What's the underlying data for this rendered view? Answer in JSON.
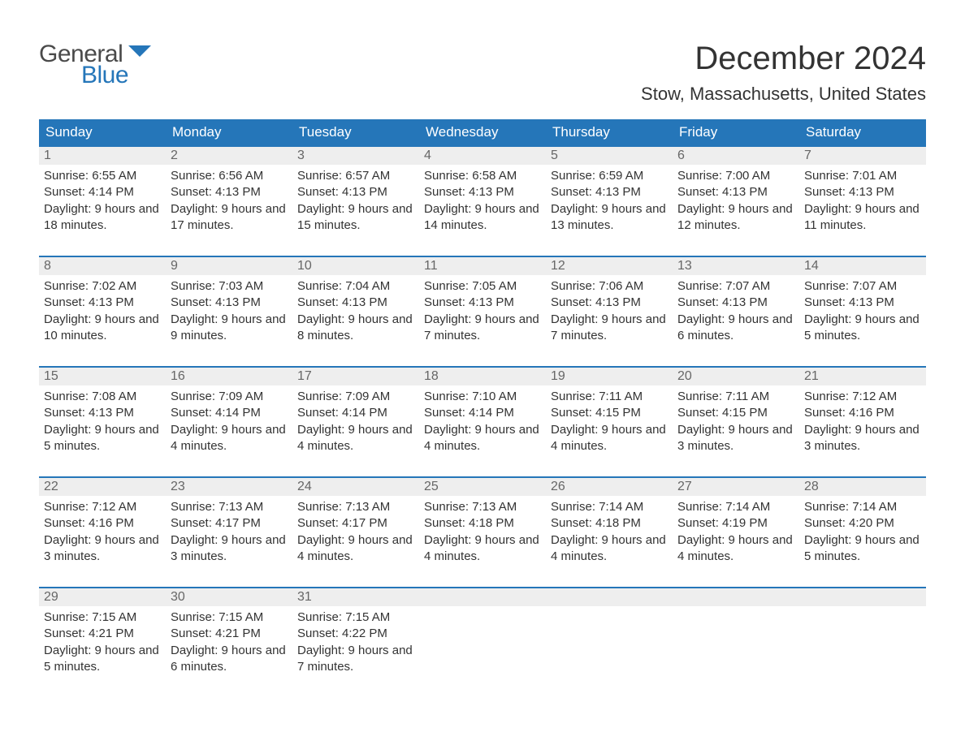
{
  "logo": {
    "top": "General",
    "bottom": "Blue"
  },
  "title": "December 2024",
  "location": "Stow, Massachusetts, United States",
  "colors": {
    "header_bg": "#2576b9",
    "header_text": "#ffffff",
    "daynum_bg": "#eeeeee",
    "daynum_text": "#666666",
    "week_border": "#2576b9",
    "body_text": "#333333",
    "logo_gray": "#4a4a4a",
    "logo_blue": "#2576b9",
    "page_bg": "#ffffff"
  },
  "dayheaders": [
    "Sunday",
    "Monday",
    "Tuesday",
    "Wednesday",
    "Thursday",
    "Friday",
    "Saturday"
  ],
  "weeks": [
    [
      {
        "num": "1",
        "sunrise": "Sunrise: 6:55 AM",
        "sunset": "Sunset: 4:14 PM",
        "daylight": "Daylight: 9 hours and 18 minutes."
      },
      {
        "num": "2",
        "sunrise": "Sunrise: 6:56 AM",
        "sunset": "Sunset: 4:13 PM",
        "daylight": "Daylight: 9 hours and 17 minutes."
      },
      {
        "num": "3",
        "sunrise": "Sunrise: 6:57 AM",
        "sunset": "Sunset: 4:13 PM",
        "daylight": "Daylight: 9 hours and 15 minutes."
      },
      {
        "num": "4",
        "sunrise": "Sunrise: 6:58 AM",
        "sunset": "Sunset: 4:13 PM",
        "daylight": "Daylight: 9 hours and 14 minutes."
      },
      {
        "num": "5",
        "sunrise": "Sunrise: 6:59 AM",
        "sunset": "Sunset: 4:13 PM",
        "daylight": "Daylight: 9 hours and 13 minutes."
      },
      {
        "num": "6",
        "sunrise": "Sunrise: 7:00 AM",
        "sunset": "Sunset: 4:13 PM",
        "daylight": "Daylight: 9 hours and 12 minutes."
      },
      {
        "num": "7",
        "sunrise": "Sunrise: 7:01 AM",
        "sunset": "Sunset: 4:13 PM",
        "daylight": "Daylight: 9 hours and 11 minutes."
      }
    ],
    [
      {
        "num": "8",
        "sunrise": "Sunrise: 7:02 AM",
        "sunset": "Sunset: 4:13 PM",
        "daylight": "Daylight: 9 hours and 10 minutes."
      },
      {
        "num": "9",
        "sunrise": "Sunrise: 7:03 AM",
        "sunset": "Sunset: 4:13 PM",
        "daylight": "Daylight: 9 hours and 9 minutes."
      },
      {
        "num": "10",
        "sunrise": "Sunrise: 7:04 AM",
        "sunset": "Sunset: 4:13 PM",
        "daylight": "Daylight: 9 hours and 8 minutes."
      },
      {
        "num": "11",
        "sunrise": "Sunrise: 7:05 AM",
        "sunset": "Sunset: 4:13 PM",
        "daylight": "Daylight: 9 hours and 7 minutes."
      },
      {
        "num": "12",
        "sunrise": "Sunrise: 7:06 AM",
        "sunset": "Sunset: 4:13 PM",
        "daylight": "Daylight: 9 hours and 7 minutes."
      },
      {
        "num": "13",
        "sunrise": "Sunrise: 7:07 AM",
        "sunset": "Sunset: 4:13 PM",
        "daylight": "Daylight: 9 hours and 6 minutes."
      },
      {
        "num": "14",
        "sunrise": "Sunrise: 7:07 AM",
        "sunset": "Sunset: 4:13 PM",
        "daylight": "Daylight: 9 hours and 5 minutes."
      }
    ],
    [
      {
        "num": "15",
        "sunrise": "Sunrise: 7:08 AM",
        "sunset": "Sunset: 4:13 PM",
        "daylight": "Daylight: 9 hours and 5 minutes."
      },
      {
        "num": "16",
        "sunrise": "Sunrise: 7:09 AM",
        "sunset": "Sunset: 4:14 PM",
        "daylight": "Daylight: 9 hours and 4 minutes."
      },
      {
        "num": "17",
        "sunrise": "Sunrise: 7:09 AM",
        "sunset": "Sunset: 4:14 PM",
        "daylight": "Daylight: 9 hours and 4 minutes."
      },
      {
        "num": "18",
        "sunrise": "Sunrise: 7:10 AM",
        "sunset": "Sunset: 4:14 PM",
        "daylight": "Daylight: 9 hours and 4 minutes."
      },
      {
        "num": "19",
        "sunrise": "Sunrise: 7:11 AM",
        "sunset": "Sunset: 4:15 PM",
        "daylight": "Daylight: 9 hours and 4 minutes."
      },
      {
        "num": "20",
        "sunrise": "Sunrise: 7:11 AM",
        "sunset": "Sunset: 4:15 PM",
        "daylight": "Daylight: 9 hours and 3 minutes."
      },
      {
        "num": "21",
        "sunrise": "Sunrise: 7:12 AM",
        "sunset": "Sunset: 4:16 PM",
        "daylight": "Daylight: 9 hours and 3 minutes."
      }
    ],
    [
      {
        "num": "22",
        "sunrise": "Sunrise: 7:12 AM",
        "sunset": "Sunset: 4:16 PM",
        "daylight": "Daylight: 9 hours and 3 minutes."
      },
      {
        "num": "23",
        "sunrise": "Sunrise: 7:13 AM",
        "sunset": "Sunset: 4:17 PM",
        "daylight": "Daylight: 9 hours and 3 minutes."
      },
      {
        "num": "24",
        "sunrise": "Sunrise: 7:13 AM",
        "sunset": "Sunset: 4:17 PM",
        "daylight": "Daylight: 9 hours and 4 minutes."
      },
      {
        "num": "25",
        "sunrise": "Sunrise: 7:13 AM",
        "sunset": "Sunset: 4:18 PM",
        "daylight": "Daylight: 9 hours and 4 minutes."
      },
      {
        "num": "26",
        "sunrise": "Sunrise: 7:14 AM",
        "sunset": "Sunset: 4:18 PM",
        "daylight": "Daylight: 9 hours and 4 minutes."
      },
      {
        "num": "27",
        "sunrise": "Sunrise: 7:14 AM",
        "sunset": "Sunset: 4:19 PM",
        "daylight": "Daylight: 9 hours and 4 minutes."
      },
      {
        "num": "28",
        "sunrise": "Sunrise: 7:14 AM",
        "sunset": "Sunset: 4:20 PM",
        "daylight": "Daylight: 9 hours and 5 minutes."
      }
    ],
    [
      {
        "num": "29",
        "sunrise": "Sunrise: 7:15 AM",
        "sunset": "Sunset: 4:21 PM",
        "daylight": "Daylight: 9 hours and 5 minutes."
      },
      {
        "num": "30",
        "sunrise": "Sunrise: 7:15 AM",
        "sunset": "Sunset: 4:21 PM",
        "daylight": "Daylight: 9 hours and 6 minutes."
      },
      {
        "num": "31",
        "sunrise": "Sunrise: 7:15 AM",
        "sunset": "Sunset: 4:22 PM",
        "daylight": "Daylight: 9 hours and 7 minutes."
      },
      null,
      null,
      null,
      null
    ]
  ]
}
